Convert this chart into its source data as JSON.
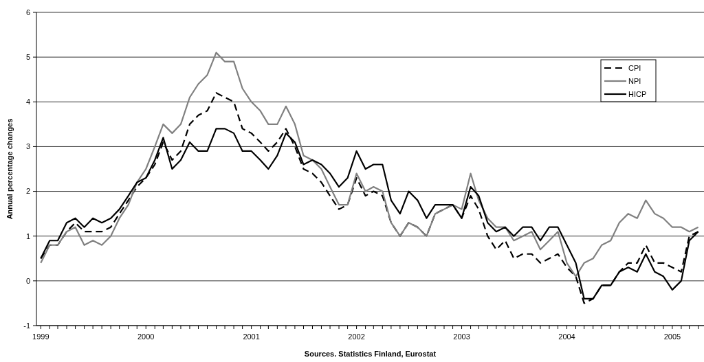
{
  "chart_data": {
    "type": "line",
    "ylabel": "Annual percentage changes",
    "annotations": [
      "Sources. Statistics Finland, Eurostat"
    ],
    "x": [
      "1999-01",
      "1999-02",
      "1999-03",
      "1999-04",
      "1999-05",
      "1999-06",
      "1999-07",
      "1999-08",
      "1999-09",
      "1999-10",
      "1999-11",
      "1999-12",
      "2000-01",
      "2000-02",
      "2000-03",
      "2000-04",
      "2000-05",
      "2000-06",
      "2000-07",
      "2000-08",
      "2000-09",
      "2000-10",
      "2000-11",
      "2000-12",
      "2001-01",
      "2001-02",
      "2001-03",
      "2001-04",
      "2001-05",
      "2001-06",
      "2001-07",
      "2001-08",
      "2001-09",
      "2001-10",
      "2001-11",
      "2001-12",
      "2002-01",
      "2002-02",
      "2002-03",
      "2002-04",
      "2002-05",
      "2002-06",
      "2002-07",
      "2002-08",
      "2002-09",
      "2002-10",
      "2002-11",
      "2002-12",
      "2003-01",
      "2003-02",
      "2003-03",
      "2003-04",
      "2003-05",
      "2003-06",
      "2003-07",
      "2003-08",
      "2003-09",
      "2003-10",
      "2003-11",
      "2003-12",
      "2004-01",
      "2004-02",
      "2004-03",
      "2004-04",
      "2004-05",
      "2004-06",
      "2004-07",
      "2004-08",
      "2004-09",
      "2004-10",
      "2004-11",
      "2004-12",
      "2005-01",
      "2005-02",
      "2005-03",
      "2005-04"
    ],
    "series": [
      {
        "name": "CPI",
        "color": "#000000",
        "line_style": "dashed",
        "values": [
          0.5,
          0.8,
          0.8,
          1.1,
          1.3,
          1.1,
          1.1,
          1.1,
          1.2,
          1.5,
          1.8,
          2.1,
          2.3,
          2.6,
          3.1,
          2.7,
          2.9,
          3.5,
          3.7,
          3.8,
          4.2,
          4.1,
          4.0,
          3.4,
          3.3,
          3.1,
          2.9,
          3.1,
          3.4,
          3.0,
          2.5,
          2.4,
          2.2,
          1.9,
          1.6,
          1.7,
          2.3,
          1.9,
          2.0,
          1.9,
          1.3,
          1.0,
          1.3,
          1.2,
          1.0,
          1.5,
          1.6,
          1.7,
          1.4,
          1.9,
          1.6,
          1.0,
          0.7,
          0.9,
          0.5,
          0.6,
          0.6,
          0.4,
          0.5,
          0.6,
          0.3,
          0.1,
          -0.5,
          -0.4,
          -0.1,
          -0.1,
          0.2,
          0.4,
          0.4,
          0.8,
          0.4,
          0.4,
          0.3,
          0.2,
          1.0,
          1.1
        ]
      },
      {
        "name": "NPI",
        "color": "#808080",
        "line_style": "solid",
        "values": [
          0.4,
          0.8,
          0.8,
          1.1,
          1.2,
          0.8,
          0.9,
          0.8,
          1.0,
          1.4,
          1.7,
          2.2,
          2.5,
          3.0,
          3.5,
          3.3,
          3.5,
          4.1,
          4.4,
          4.6,
          5.1,
          4.9,
          4.9,
          4.3,
          4.0,
          3.8,
          3.5,
          3.5,
          3.9,
          3.5,
          2.8,
          2.7,
          2.5,
          2.1,
          1.7,
          1.7,
          2.4,
          2.0,
          2.1,
          2.0,
          1.3,
          1.0,
          1.3,
          1.2,
          1.0,
          1.5,
          1.6,
          1.7,
          1.6,
          2.4,
          1.8,
          1.4,
          1.2,
          1.2,
          0.9,
          1.0,
          1.1,
          0.7,
          0.9,
          1.1,
          0.4,
          0.1,
          0.4,
          0.5,
          0.8,
          0.9,
          1.3,
          1.5,
          1.4,
          1.8,
          1.5,
          1.4,
          1.2,
          1.2,
          1.1,
          1.2
        ]
      },
      {
        "name": "HICP",
        "color": "#000000",
        "line_style": "solid",
        "values": [
          0.5,
          0.9,
          0.9,
          1.3,
          1.4,
          1.2,
          1.4,
          1.3,
          1.4,
          1.6,
          1.9,
          2.2,
          2.3,
          2.7,
          3.2,
          2.5,
          2.7,
          3.1,
          2.9,
          2.9,
          3.4,
          3.4,
          3.3,
          2.9,
          2.9,
          2.7,
          2.5,
          2.8,
          3.3,
          3.1,
          2.6,
          2.7,
          2.6,
          2.4,
          2.1,
          2.3,
          2.9,
          2.5,
          2.6,
          2.6,
          1.8,
          1.5,
          2.0,
          1.8,
          1.4,
          1.7,
          1.7,
          1.7,
          1.4,
          2.1,
          1.9,
          1.3,
          1.1,
          1.2,
          1.0,
          1.2,
          1.2,
          0.9,
          1.2,
          1.2,
          0.8,
          0.4,
          -0.4,
          -0.4,
          -0.1,
          -0.1,
          0.2,
          0.3,
          0.2,
          0.6,
          0.2,
          0.1,
          -0.2,
          0.0,
          0.9,
          1.1
        ]
      }
    ],
    "xlim": [
      "1998-12-17",
      "2005-04-21"
    ],
    "xticks": [
      {
        "value": "1999-01",
        "label": "1999"
      },
      {
        "value": "1999-02",
        "label": null
      },
      {
        "value": "1999-03",
        "label": null
      },
      {
        "value": "1999-04",
        "label": null
      },
      {
        "value": "1999-05",
        "label": null
      },
      {
        "value": "1999-06",
        "label": null
      },
      {
        "value": "1999-07",
        "label": null
      },
      {
        "value": "1999-08",
        "label": null
      },
      {
        "value": "1999-09",
        "label": null
      },
      {
        "value": "1999-10",
        "label": null
      },
      {
        "value": "1999-11",
        "label": null
      },
      {
        "value": "1999-12",
        "label": null
      },
      {
        "value": "2000-01",
        "label": "2000"
      },
      {
        "value": "2000-02",
        "label": null
      },
      {
        "value": "2000-03",
        "label": null
      },
      {
        "value": "2000-04",
        "label": null
      },
      {
        "value": "2000-05",
        "label": null
      },
      {
        "value": "2000-06",
        "label": null
      },
      {
        "value": "2000-07",
        "label": null
      },
      {
        "value": "2000-08",
        "label": null
      },
      {
        "value": "2000-09",
        "label": null
      },
      {
        "value": "2000-10",
        "label": null
      },
      {
        "value": "2000-11",
        "label": null
      },
      {
        "value": "2000-12",
        "label": null
      },
      {
        "value": "2001-01",
        "label": "2001"
      },
      {
        "value": "2001-02",
        "label": null
      },
      {
        "value": "2001-03",
        "label": null
      },
      {
        "value": "2001-04",
        "label": null
      },
      {
        "value": "2001-05",
        "label": null
      },
      {
        "value": "2001-06",
        "label": null
      },
      {
        "value": "2001-07",
        "label": null
      },
      {
        "value": "2001-08",
        "label": null
      },
      {
        "value": "2001-09",
        "label": null
      },
      {
        "value": "2001-10",
        "label": null
      },
      {
        "value": "2001-11",
        "label": null
      },
      {
        "value": "2001-12",
        "label": null
      },
      {
        "value": "2002-01",
        "label": "2002"
      },
      {
        "value": "2002-02",
        "label": null
      },
      {
        "value": "2002-03",
        "label": null
      },
      {
        "value": "2002-04",
        "label": null
      },
      {
        "value": "2002-05",
        "label": null
      },
      {
        "value": "2002-06",
        "label": null
      },
      {
        "value": "2002-07",
        "label": null
      },
      {
        "value": "2002-08",
        "label": null
      },
      {
        "value": "2002-09",
        "label": null
      },
      {
        "value": "2002-10",
        "label": null
      },
      {
        "value": "2002-11",
        "label": null
      },
      {
        "value": "2002-12",
        "label": null
      },
      {
        "value": "2003-01",
        "label": "2003"
      },
      {
        "value": "2003-02",
        "label": null
      },
      {
        "value": "2003-03",
        "label": null
      },
      {
        "value": "2003-04",
        "label": null
      },
      {
        "value": "2003-05",
        "label": null
      },
      {
        "value": "2003-06",
        "label": null
      },
      {
        "value": "2003-07",
        "label": null
      },
      {
        "value": "2003-08",
        "label": null
      },
      {
        "value": "2003-09",
        "label": null
      },
      {
        "value": "2003-10",
        "label": null
      },
      {
        "value": "2003-11",
        "label": null
      },
      {
        "value": "2003-12",
        "label": null
      },
      {
        "value": "2004-01",
        "label": "2004"
      },
      {
        "value": "2004-02",
        "label": null
      },
      {
        "value": "2004-03",
        "label": null
      },
      {
        "value": "2004-04",
        "label": null
      },
      {
        "value": "2004-05",
        "label": null
      },
      {
        "value": "2004-06",
        "label": null
      },
      {
        "value": "2004-07",
        "label": null
      },
      {
        "value": "2004-08",
        "label": null
      },
      {
        "value": "2004-09",
        "label": null
      },
      {
        "value": "2004-10",
        "label": null
      },
      {
        "value": "2004-11",
        "label": null
      },
      {
        "value": "2004-12",
        "label": null
      },
      {
        "value": "2005-01",
        "label": "2005"
      },
      {
        "value": "2005-02",
        "label": null
      },
      {
        "value": "2005-03",
        "label": null
      },
      {
        "value": "2005-04",
        "label": null
      }
    ],
    "ylim": [
      -1,
      6
    ],
    "yticks": [
      -1,
      0,
      1,
      2,
      3,
      4,
      5,
      6
    ],
    "grid": "y",
    "legend": "top right",
    "marker": "none"
  }
}
